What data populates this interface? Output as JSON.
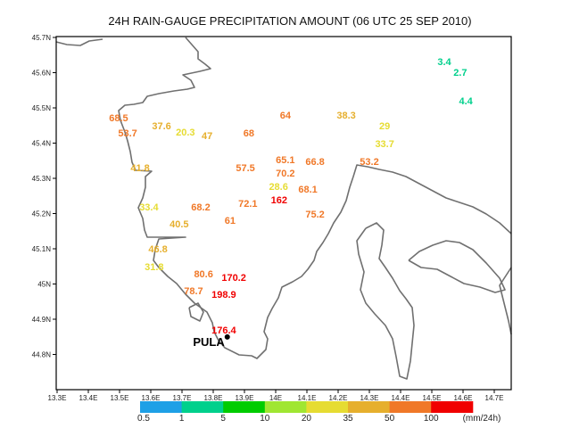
{
  "title": "24H RAIN-GAUGE PRECIPITATION AMOUNT (06 UTC 25 SEP 2010)",
  "map": {
    "lon_range": [
      13.3,
      14.75
    ],
    "lat_range": [
      44.7,
      45.7
    ],
    "lon_ticks": [
      "13.3E",
      "13.4E",
      "13.5E",
      "13.6E",
      "13.7E",
      "13.8E",
      "13.9E",
      "14E",
      "14.1E",
      "14.2E",
      "14.3E",
      "14.4E",
      "14.5E",
      "14.6E",
      "14.7E"
    ],
    "lat_ticks": [
      "45.7N",
      "45.6N",
      "45.5N",
      "45.4N",
      "45.3N",
      "45.2N",
      "45.1N",
      "45N",
      "44.9N",
      "44.8N"
    ],
    "city": {
      "name": "PULA",
      "lon": 13.845,
      "lat": 44.87
    }
  },
  "stations": [
    {
      "value": "68.5",
      "lon": 13.497,
      "lat": 45.472
    },
    {
      "value": "53.7",
      "lon": 13.526,
      "lat": 45.429
    },
    {
      "value": "37.6",
      "lon": 13.643,
      "lat": 45.449
    },
    {
      "value": "20.3",
      "lon": 13.711,
      "lat": 45.432
    },
    {
      "value": "47",
      "lon": 13.769,
      "lat": 45.422
    },
    {
      "value": "68",
      "lon": 13.914,
      "lat": 45.429
    },
    {
      "value": "64",
      "lon": 14.031,
      "lat": 45.48
    },
    {
      "value": "38.3",
      "lon": 14.226,
      "lat": 45.48
    },
    {
      "value": "29",
      "lon": 14.349,
      "lat": 45.449
    },
    {
      "value": "33.7",
      "lon": 14.349,
      "lat": 45.399
    },
    {
      "value": "41.8",
      "lon": 13.566,
      "lat": 45.33
    },
    {
      "value": "57.5",
      "lon": 13.903,
      "lat": 45.33
    },
    {
      "value": "65.1",
      "lon": 14.031,
      "lat": 45.348
    },
    {
      "value": "70.2",
      "lon": 14.031,
      "lat": 45.32
    },
    {
      "value": "66.8",
      "lon": 14.126,
      "lat": 45.348
    },
    {
      "value": "53.2",
      "lon": 14.3,
      "lat": 45.348
    },
    {
      "value": "28.6",
      "lon": 14.009,
      "lat": 45.27
    },
    {
      "value": "162",
      "lon": 14.011,
      "lat": 45.249
    },
    {
      "value": "68.1",
      "lon": 14.103,
      "lat": 45.27
    },
    {
      "value": "33.4",
      "lon": 13.594,
      "lat": 45.219
    },
    {
      "value": "68.2",
      "lon": 13.76,
      "lat": 45.219
    },
    {
      "value": "72.1",
      "lon": 13.911,
      "lat": 45.229
    },
    {
      "value": "75.2",
      "lon": 14.126,
      "lat": 45.199
    },
    {
      "value": "61",
      "lon": 13.854,
      "lat": 45.181
    },
    {
      "value": "40.5",
      "lon": 13.691,
      "lat": 45.171
    },
    {
      "value": "46.8",
      "lon": 13.623,
      "lat": 45.1
    },
    {
      "value": "31.8",
      "lon": 13.611,
      "lat": 45.049
    },
    {
      "value": "80.6",
      "lon": 13.769,
      "lat": 45.029
    },
    {
      "value": "170.2",
      "lon": 13.866,
      "lat": 45.019
    },
    {
      "value": "78.7",
      "lon": 13.737,
      "lat": 44.981
    },
    {
      "value": "198.9",
      "lon": 13.834,
      "lat": 44.971
    },
    {
      "value": "176.4",
      "lon": 13.834,
      "lat": 44.87
    },
    {
      "value": "3.4",
      "lon": 14.54,
      "lat": 45.632
    },
    {
      "value": "2.7",
      "lon": 14.591,
      "lat": 45.601
    },
    {
      "value": "4.4",
      "lon": 14.609,
      "lat": 45.52
    }
  ],
  "legend": {
    "unit": "(mm/24h)",
    "thresholds": [
      "0.5",
      "1",
      "5",
      "10",
      "20",
      "35",
      "50",
      "100"
    ],
    "colors": [
      "#1ea0e6",
      "#00d08c",
      "#00cc00",
      "#a0e632",
      "#e6dc32",
      "#e6af2d",
      "#f07828",
      "#f00000"
    ]
  }
}
